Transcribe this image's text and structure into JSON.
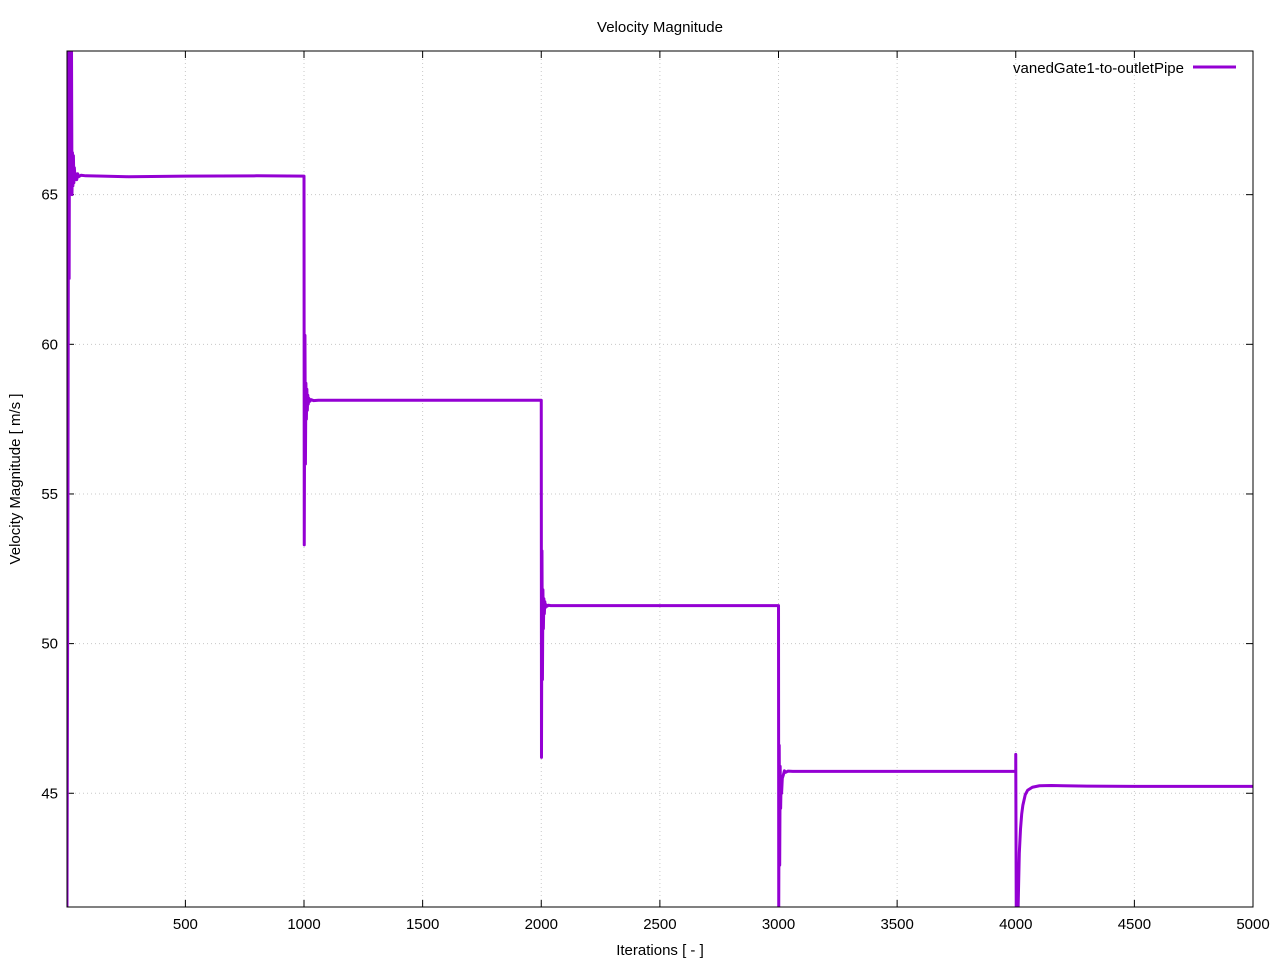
{
  "chart_data": {
    "type": "line",
    "title": "Velocity Magnitude",
    "xlabel": "Iterations [ - ]",
    "ylabel": "Velocity Magnitude [ m/s ]",
    "xlim": [
      1,
      5000
    ],
    "ylim": [
      41.2,
      69.8
    ],
    "x_ticks": [
      500,
      1000,
      1500,
      2000,
      2500,
      3000,
      3500,
      4000,
      4500,
      5000
    ],
    "y_ticks": [
      45,
      50,
      55,
      60,
      65
    ],
    "grid": true,
    "legend_position": "top-right",
    "series": [
      {
        "name": "vanedGate1-to-outletPipe",
        "color": "#9400d3",
        "x": [
          1,
          5,
          8,
          10,
          12,
          14,
          16,
          18,
          20,
          22,
          24,
          26,
          28,
          30,
          32,
          35,
          38,
          42,
          46,
          50,
          60,
          80,
          150,
          260,
          500,
          800,
          1000,
          1001,
          1002,
          1004,
          1006,
          1008,
          1010,
          1012,
          1014,
          1016,
          1018,
          1020,
          1025,
          1030,
          1040,
          1060,
          1100,
          1500,
          2000,
          2001,
          2003,
          2005,
          2007,
          2009,
          2011,
          2013,
          2015,
          2017,
          2020,
          2025,
          2030,
          2040,
          2060,
          2100,
          2500,
          3000,
          3001,
          3003,
          3005,
          3007,
          3009,
          3011,
          3013,
          3016,
          3020,
          3025,
          3030,
          3040,
          3060,
          3100,
          3500,
          4000,
          4000,
          4002,
          4005,
          4010,
          4015,
          4020,
          4025,
          4030,
          4040,
          4050,
          4070,
          4100,
          4150,
          4200,
          4300,
          4500,
          5000
        ],
        "y": [
          41.2,
          55.0,
          69.8,
          62.2,
          69.8,
          65.4,
          69.8,
          65.2,
          69.8,
          65.0,
          66.4,
          65.3,
          66.3,
          65.4,
          65.9,
          65.5,
          65.7,
          65.5,
          65.7,
          65.6,
          65.65,
          65.63,
          65.62,
          65.6,
          65.62,
          65.63,
          65.62,
          53.3,
          56.0,
          60.3,
          56.0,
          58.7,
          57.5,
          58.5,
          57.8,
          58.3,
          58.0,
          58.2,
          58.1,
          58.15,
          58.12,
          58.13,
          58.13,
          58.13,
          58.13,
          46.2,
          53.1,
          48.8,
          51.8,
          50.5,
          51.5,
          51.0,
          51.4,
          51.2,
          51.3,
          51.25,
          51.28,
          51.27,
          51.27,
          51.27,
          51.27,
          51.27,
          41.2,
          46.6,
          42.6,
          45.9,
          44.5,
          45.4,
          45.0,
          45.5,
          45.6,
          45.75,
          45.7,
          45.74,
          45.73,
          45.73,
          45.73,
          45.73,
          46.3,
          41.2,
          42.2,
          41.2,
          43.0,
          43.8,
          44.3,
          44.6,
          44.95,
          45.1,
          45.2,
          45.25,
          45.26,
          45.25,
          45.24,
          45.23,
          45.23
        ]
      }
    ]
  }
}
